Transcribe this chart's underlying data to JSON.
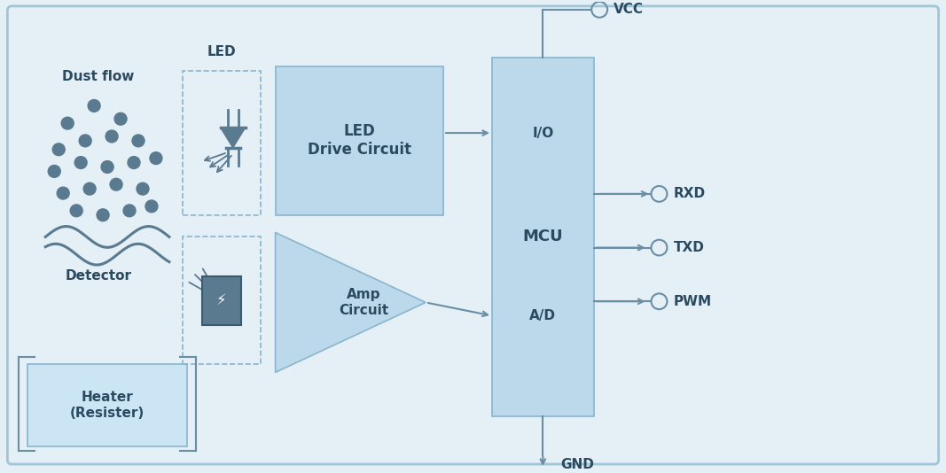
{
  "bg_color": "#e4eff6",
  "outer_border_color": "#9fc5d8",
  "block_fill_color": "#bcd8eb",
  "block_edge_color": "#8ab5cc",
  "text_color": "#5a7a90",
  "arrow_color": "#6a8fa5",
  "label_color": "#2a4a60",
  "dust_flow_label": "Dust flow",
  "detector_label": "Detector",
  "led_label": "LED",
  "led_drive_label": "LED\nDrive Circuit",
  "amp_circuit_label": "Amp\nCircuit",
  "mcu_label": "MCU",
  "io_label": "I/O",
  "ad_label": "A/D",
  "vcc_label": "VCC",
  "rxd_label": "RXD",
  "txd_label": "TXD",
  "pwm_label": "PWM",
  "gnd_label": "GND",
  "heater_label": "Heater\n(Resister)"
}
